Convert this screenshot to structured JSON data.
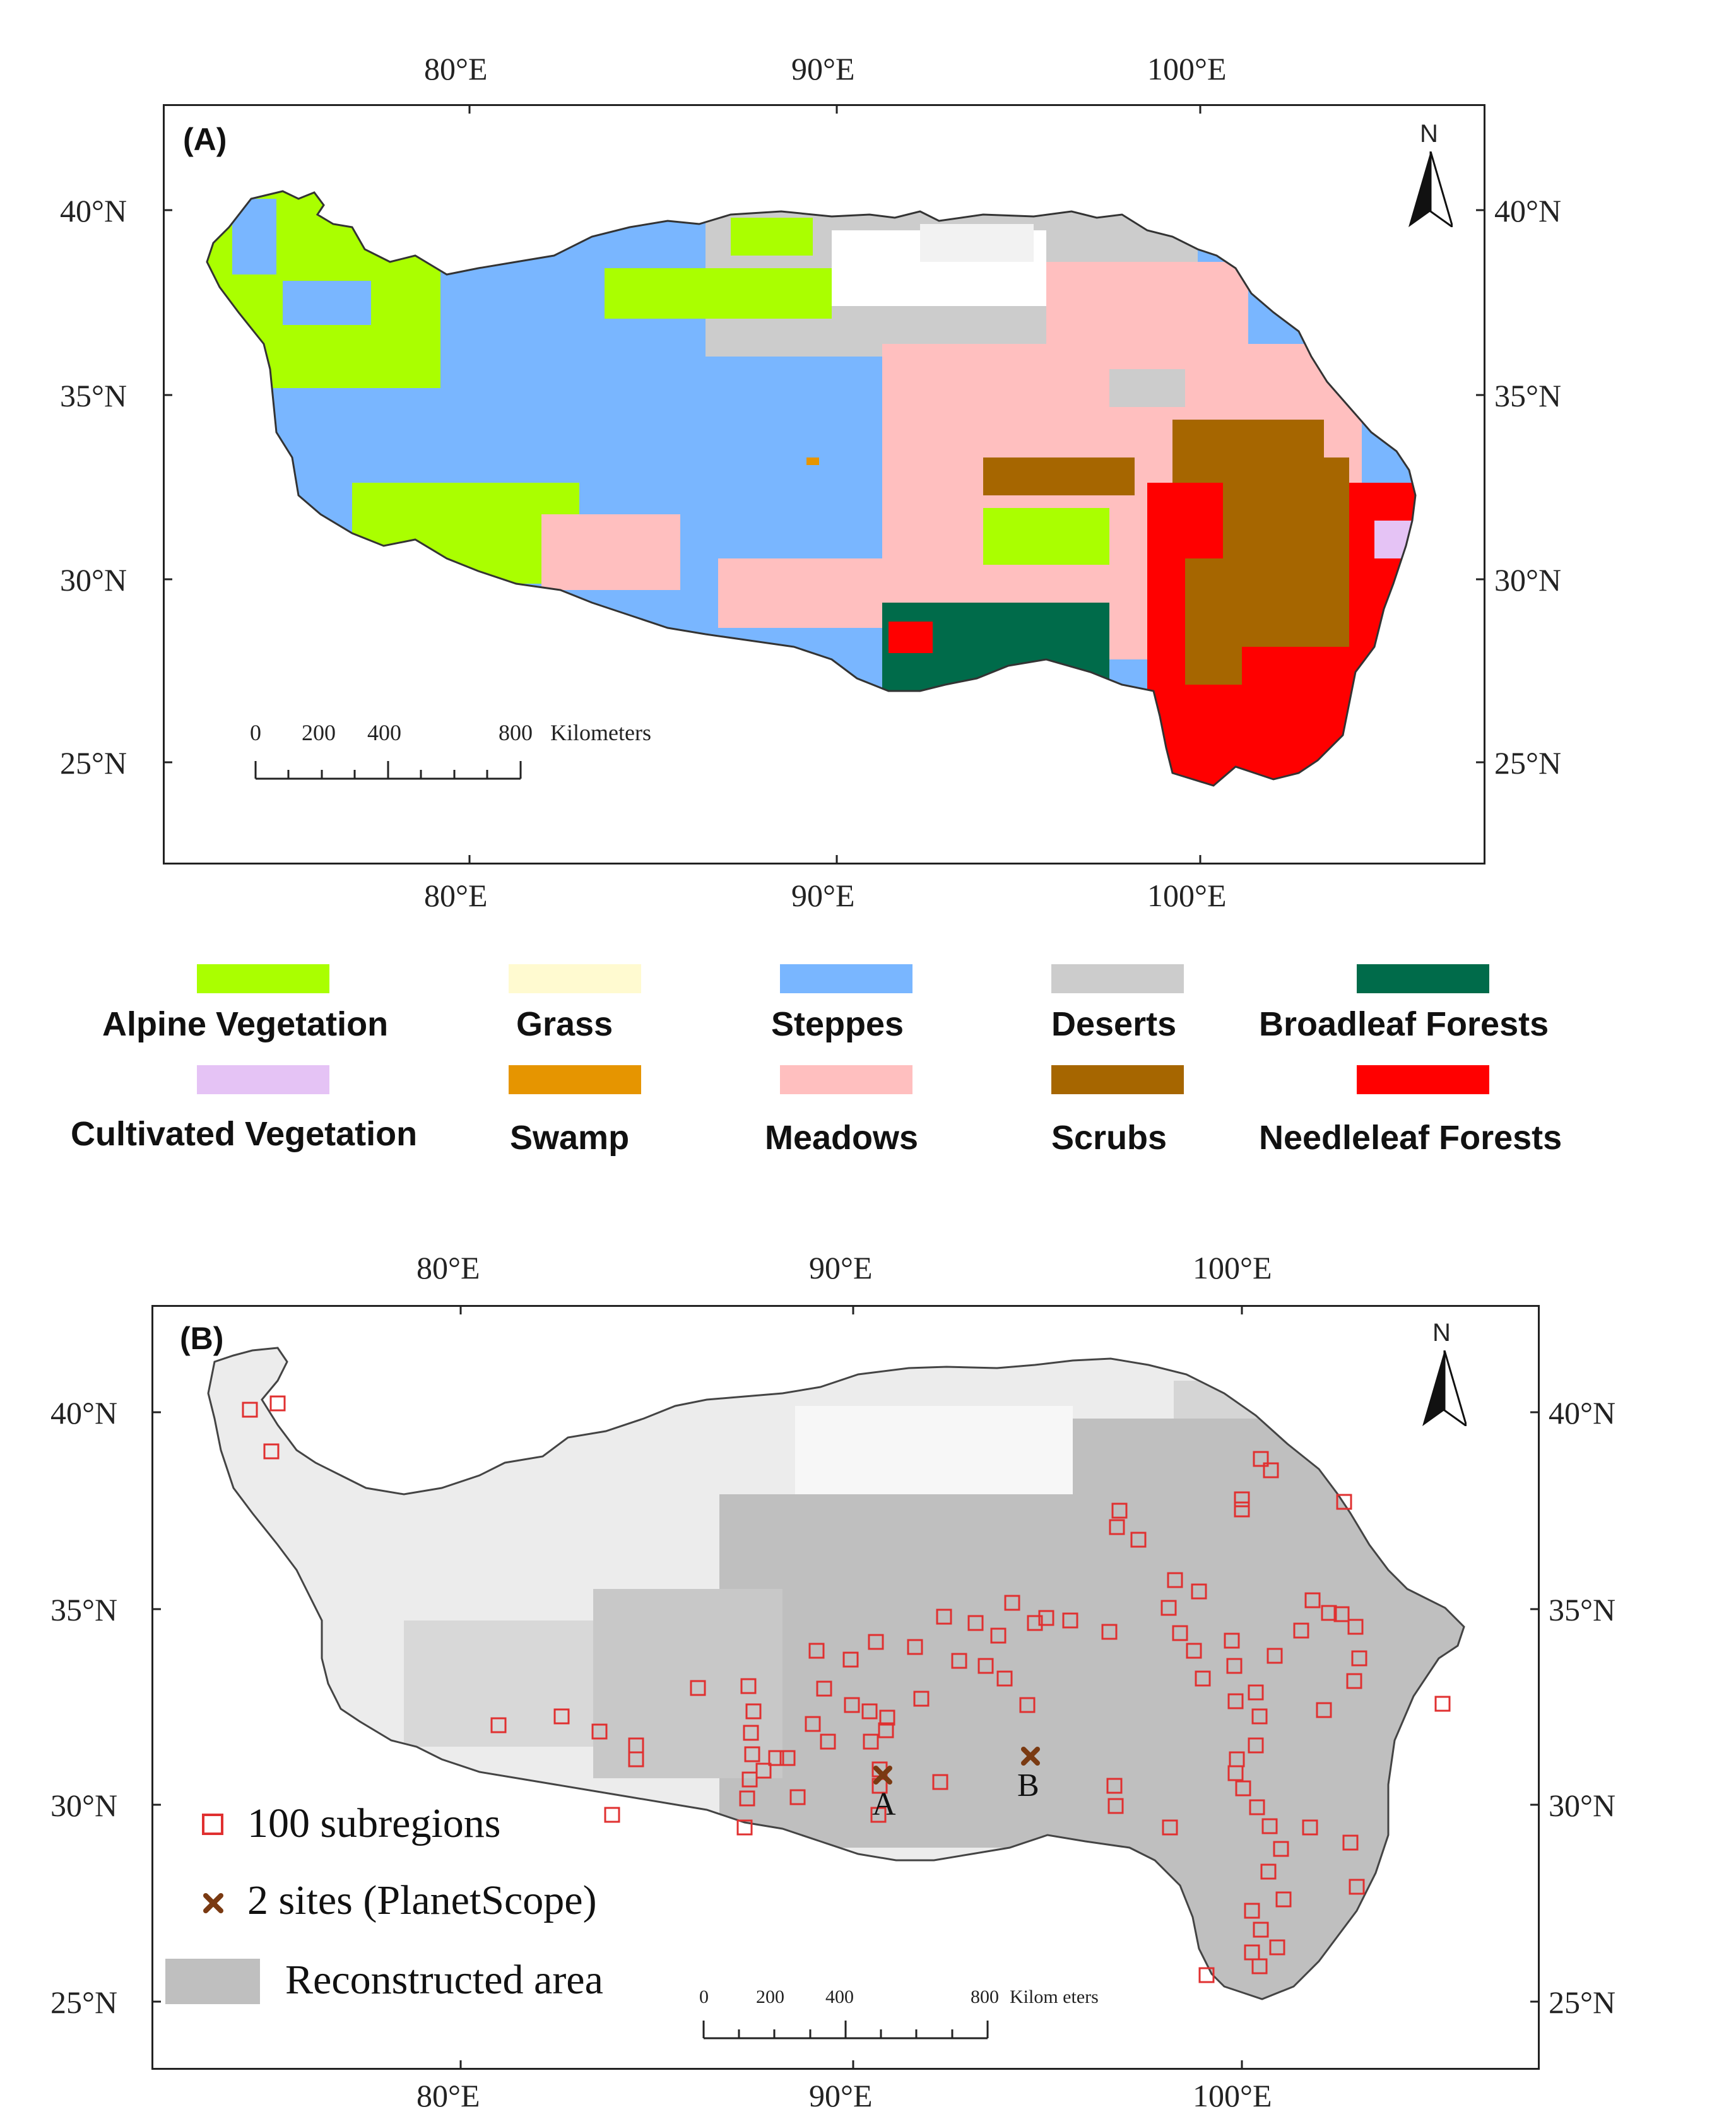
{
  "panel_a": {
    "label": "(A)",
    "top_ticks": [
      "80°E",
      "90°E",
      "100°E"
    ],
    "bottom_ticks": [
      "80°E",
      "90°E",
      "100°E"
    ],
    "left_ticks": [
      "40°N",
      "35°N",
      "30°N",
      "25°N"
    ],
    "right_ticks": [
      "40°N",
      "35°N",
      "30°N",
      "25°N"
    ],
    "north": "N",
    "scale": {
      "t0": "0",
      "t1": "200",
      "t2": "400",
      "t3": "800",
      "unit": "Kilometers"
    }
  },
  "legend_a": {
    "items": [
      {
        "label": "Alpine Vegetation",
        "color": "#aaff00"
      },
      {
        "label": "Grass",
        "color": "#fffad0"
      },
      {
        "label": "Steppes",
        "color": "#79b6ff"
      },
      {
        "label": "Deserts",
        "color": "#cccccc"
      },
      {
        "label": "Broadleaf Forests",
        "color": "#006b4a"
      },
      {
        "label": "Cultivated Vegetation",
        "color": "#e5c3f5"
      },
      {
        "label": "Swamp",
        "color": "#e69500"
      },
      {
        "label": "Meadows",
        "color": "#ffbfbf"
      },
      {
        "label": "Scrubs",
        "color": "#a66600"
      },
      {
        "label": "Needleleaf Forests",
        "color": "#ff0000"
      }
    ]
  },
  "panel_b": {
    "label": "(B)",
    "top_ticks": [
      "80°E",
      "90°E",
      "100°E"
    ],
    "bottom_ticks": [
      "80°E",
      "90°E",
      "100°E"
    ],
    "left_ticks": [
      "40°N",
      "35°N",
      "30°N",
      "25°N"
    ],
    "right_ticks": [
      "40°N",
      "35°N",
      "30°N",
      "25°N"
    ],
    "north": "N",
    "scale": {
      "t0": "0",
      "t1": "200",
      "t2": "400",
      "t3": "800",
      "unit": "Kilom eters"
    },
    "site_a": "A",
    "site_b": "B",
    "legend": {
      "subregions": "100 subregions",
      "sites": "2 sites (PlanetScope)",
      "area": "Reconstructed area"
    },
    "colors": {
      "subregion": "#e03030",
      "site": "#7a3a12",
      "area": "#bfbfbf"
    }
  }
}
